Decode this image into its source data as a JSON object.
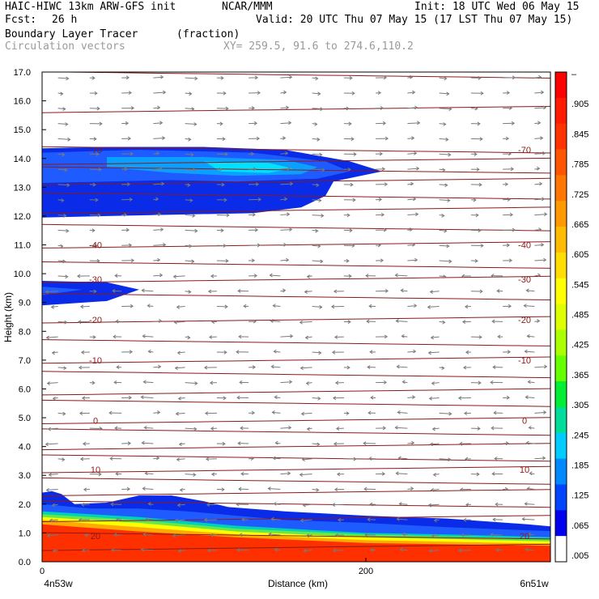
{
  "header": {
    "model": "HAIC-HIWC 13km ARW-GFS init",
    "org": "NCAR/MMM",
    "init": "Init: 18 UTC Wed 06 May 15",
    "fcst_label": "Fcst:",
    "fcst_value": "26 h",
    "valid": "Valid: 20 UTC Thu 07 May 15 (17 LST Thu 07 May 15)",
    "field": "Boundary Layer Tracer",
    "field_units": "(fraction)",
    "overlay": "Circulation vectors",
    "xy": "XY= 259.5, 91.6 to 274.6,110.2"
  },
  "chart_data": {
    "type": "heatmap",
    "xlabel": "Distance (km)",
    "ylabel": "Height (km)",
    "xlim": [
      0,
      314
    ],
    "ylim": [
      0,
      17
    ],
    "x_ticks": [
      "0",
      "200"
    ],
    "x_tick_values": [
      0,
      200
    ],
    "x_end_labels": [
      "4n53w",
      "6n51w"
    ],
    "y_ticks": [
      "0.0",
      "1.0",
      "2.0",
      "3.0",
      "4.0",
      "5.0",
      "6.0",
      "7.0",
      "8.0",
      "9.0",
      "10.0",
      "11.0",
      "12.0",
      "13.0",
      "14.0",
      "15.0",
      "16.0",
      "17.0"
    ],
    "colorbar": {
      "labels": [
        "–",
        ".905",
        ".845",
        ".785",
        ".725",
        ".665",
        ".605",
        ".545",
        ".485",
        ".425",
        ".365",
        ".305",
        ".245",
        ".185",
        ".125",
        ".065",
        ".005"
      ],
      "colors": [
        "#ff0000",
        "#ff1a00",
        "#ff3300",
        "#ff5500",
        "#ff7700",
        "#ff9900",
        "#ffbb00",
        "#ffdd00",
        "#ffff00",
        "#ddff00",
        "#aaff00",
        "#66ff00",
        "#00ee33",
        "#00dd99",
        "#00ccff",
        "#0088ff",
        "#0044ff",
        "#0000ee",
        "#ffffff"
      ]
    },
    "tracer_layers": [
      {
        "level": 0.005,
        "color": "#0a2be8",
        "outline": [
          [
            0,
            2.4
          ],
          [
            6,
            2.45
          ],
          [
            12,
            2.35
          ],
          [
            20,
            2.0
          ],
          [
            40,
            2.05
          ],
          [
            60,
            2.3
          ],
          [
            80,
            2.3
          ],
          [
            100,
            2.1
          ],
          [
            115,
            1.9
          ],
          [
            150,
            1.75
          ],
          [
            200,
            1.6
          ],
          [
            250,
            1.5
          ],
          [
            300,
            1.3
          ],
          [
            320,
            1.2
          ],
          [
            320,
            0
          ],
          [
            0,
            0
          ]
        ]
      },
      {
        "level": 0.065,
        "color": "#1f5cff",
        "outline": [
          [
            0,
            2.0
          ],
          [
            30,
            1.85
          ],
          [
            60,
            1.85
          ],
          [
            90,
            1.75
          ],
          [
            150,
            1.45
          ],
          [
            200,
            1.35
          ],
          [
            250,
            1.2
          ],
          [
            320,
            1.05
          ],
          [
            320,
            0
          ],
          [
            0,
            0
          ]
        ]
      },
      {
        "level": 0.185,
        "color": "#00d2b4",
        "outline": [
          [
            0,
            1.75
          ],
          [
            60,
            1.55
          ],
          [
            120,
            1.25
          ],
          [
            200,
            1.0
          ],
          [
            250,
            0.95
          ],
          [
            320,
            0.85
          ],
          [
            320,
            0
          ],
          [
            0,
            0
          ]
        ]
      },
      {
        "level": 0.305,
        "color": "#66e84a",
        "outline": [
          [
            0,
            1.65
          ],
          [
            60,
            1.45
          ],
          [
            120,
            1.15
          ],
          [
            200,
            0.95
          ],
          [
            320,
            0.78
          ],
          [
            320,
            0
          ],
          [
            0,
            0
          ]
        ]
      },
      {
        "level": 0.485,
        "color": "#ffff00",
        "outline": [
          [
            0,
            1.55
          ],
          [
            60,
            1.35
          ],
          [
            120,
            1.05
          ],
          [
            200,
            0.85
          ],
          [
            320,
            0.7
          ],
          [
            320,
            0
          ],
          [
            0,
            0
          ]
        ]
      },
      {
        "level": 0.665,
        "color": "#ffaa00",
        "outline": [
          [
            0,
            1.45
          ],
          [
            60,
            1.2
          ],
          [
            120,
            0.95
          ],
          [
            200,
            0.75
          ],
          [
            320,
            0.62
          ],
          [
            320,
            0
          ],
          [
            0,
            0
          ]
        ]
      },
      {
        "level": 0.845,
        "color": "#ff3000",
        "outline": [
          [
            0,
            1.3
          ],
          [
            60,
            1.05
          ],
          [
            120,
            0.85
          ],
          [
            200,
            0.65
          ],
          [
            320,
            0.55
          ],
          [
            320,
            0
          ],
          [
            0,
            0
          ]
        ]
      },
      {
        "level": 0.005,
        "color": "#0a2be8",
        "outline": [
          [
            0,
            14.35
          ],
          [
            40,
            14.4
          ],
          [
            100,
            14.4
          ],
          [
            150,
            14.3
          ],
          [
            190,
            13.9
          ],
          [
            210,
            13.55
          ],
          [
            180,
            13.2
          ],
          [
            175,
            12.7
          ],
          [
            160,
            12.3
          ],
          [
            130,
            12.1
          ],
          [
            80,
            12.05
          ],
          [
            0,
            11.95
          ]
        ]
      },
      {
        "level": 0.065,
        "color": "#1f5cff",
        "outline": [
          [
            0,
            14.2
          ],
          [
            60,
            14.3
          ],
          [
            130,
            14.2
          ],
          [
            175,
            13.9
          ],
          [
            190,
            13.55
          ],
          [
            170,
            13.3
          ],
          [
            120,
            13.2
          ],
          [
            80,
            13.25
          ],
          [
            0,
            13.15
          ]
        ]
      },
      {
        "level": 0.185,
        "color": "#0aa0ff",
        "outline": [
          [
            40,
            14.05
          ],
          [
            100,
            14.05
          ],
          [
            150,
            13.95
          ],
          [
            170,
            13.7
          ],
          [
            160,
            13.45
          ],
          [
            120,
            13.4
          ],
          [
            80,
            13.5
          ],
          [
            40,
            13.7
          ]
        ]
      },
      {
        "level": 0.245,
        "color": "#00e0ff",
        "outline": [
          [
            100,
            13.9
          ],
          [
            140,
            13.85
          ],
          [
            155,
            13.65
          ],
          [
            140,
            13.5
          ],
          [
            110,
            13.55
          ]
        ]
      },
      {
        "level": 0.005,
        "color": "#0a2be8",
        "outline": [
          [
            0,
            9.75
          ],
          [
            40,
            9.7
          ],
          [
            60,
            9.45
          ],
          [
            40,
            9.05
          ],
          [
            0,
            8.9
          ]
        ]
      },
      {
        "level": 0.065,
        "color": "#1f5cff",
        "outline": [
          [
            0,
            9.55
          ],
          [
            25,
            9.45
          ],
          [
            0,
            9.25
          ]
        ]
      }
    ],
    "temperature_contours": [
      {
        "label": "-70",
        "y": 14.3
      },
      {
        "label": "-40",
        "y": 11.0
      },
      {
        "label": "-30",
        "y": 9.8
      },
      {
        "label": "-20",
        "y": 8.4
      },
      {
        "label": "-10",
        "y": 7.0
      },
      {
        "label": "0",
        "y": 4.9
      },
      {
        "label": "10",
        "y": 3.2
      },
      {
        "label": "20",
        "y": 0.9
      }
    ],
    "isolines_y": [
      16.9,
      15.7,
      14.3,
      13.9,
      13.6,
      13.2,
      12.7,
      12.2,
      11.6,
      11.0,
      10.3,
      9.8,
      9.2,
      8.4,
      7.6,
      7.0,
      6.5,
      5.9,
      5.5,
      4.9,
      4.5,
      4.0,
      3.6,
      3.2,
      2.8,
      2.4,
      2.0,
      1.5,
      0.9,
      0.5
    ],
    "wind_field": {
      "level_min": 0.4,
      "level_max": 16.8,
      "n_columns": 16,
      "n_rows": 32
    }
  }
}
